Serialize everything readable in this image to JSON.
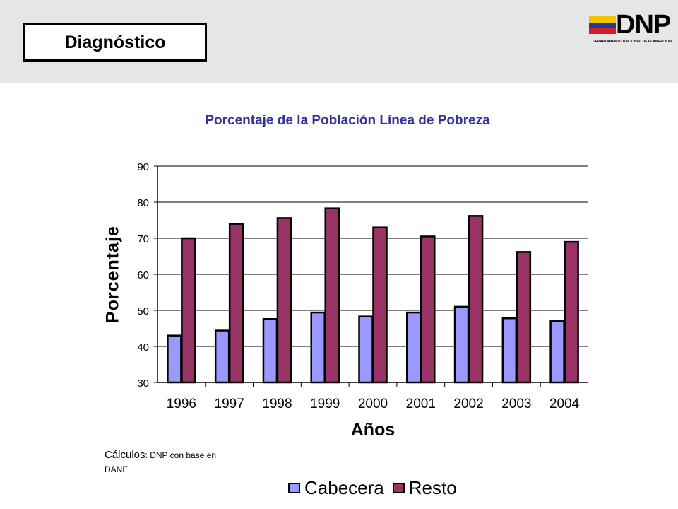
{
  "header": {
    "section_title": "Diagnóstico",
    "logo_text": "DNP",
    "logo_subtext": "DEPARTAMENTO NACIONAL DE PLANEACION"
  },
  "source": {
    "label": "Cálculos",
    "text": ": DNP con base en DANE"
  },
  "colors": {
    "cabecera": "#9999ff",
    "resto": "#993366",
    "title": "#333399"
  },
  "chart_data": {
    "type": "bar",
    "title": "Porcentaje de la Población Línea de Pobreza",
    "xlabel": "Años",
    "ylabel": "Porcentaje",
    "categories": [
      "1996",
      "1997",
      "1998",
      "1999",
      "2000",
      "2001",
      "2002",
      "2003",
      "2004"
    ],
    "series": [
      {
        "name": "Cabecera",
        "values": [
          43.0,
          44.4,
          47.6,
          49.4,
          48.3,
          49.4,
          51.0,
          47.8,
          47.0
        ]
      },
      {
        "name": "Resto",
        "values": [
          70.0,
          74.0,
          75.6,
          78.3,
          73.0,
          70.5,
          76.2,
          66.2,
          69.0
        ]
      }
    ],
    "ylim": [
      30,
      90
    ],
    "yticks": [
      30,
      40,
      50,
      60,
      70,
      80,
      90
    ],
    "grid": true,
    "legend_position": "bottom"
  }
}
